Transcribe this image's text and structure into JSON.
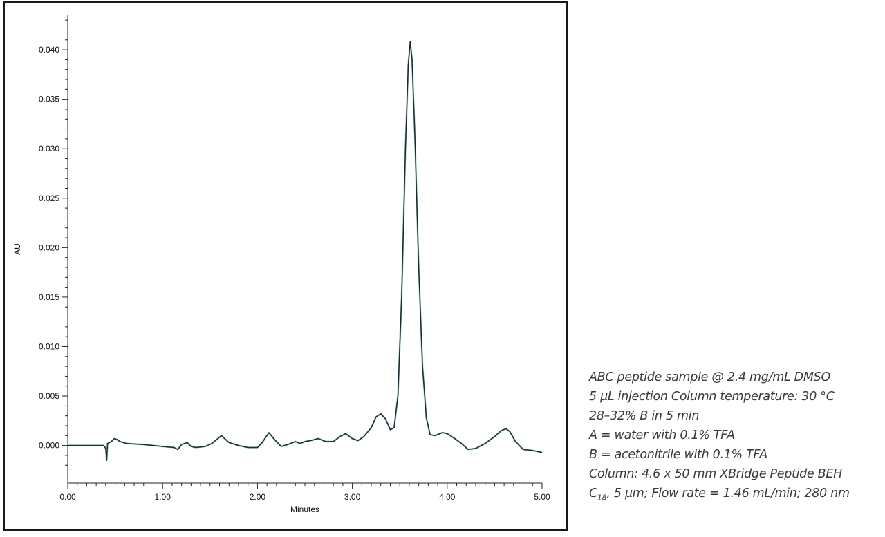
{
  "chart_data": {
    "type": "line",
    "xlabel": "Minutes",
    "ylabel": "AU",
    "xlim": [
      0.0,
      5.0
    ],
    "ylim": [
      -0.0038,
      0.0435
    ],
    "x_ticks": [
      "0.00",
      "1.00",
      "2.00",
      "3.00",
      "4.00",
      "5.00"
    ],
    "y_ticks": [
      "0.000",
      "0.005",
      "0.010",
      "0.015",
      "0.020",
      "0.025",
      "0.030",
      "0.035",
      "0.040"
    ],
    "grid": false,
    "series": [
      {
        "color": "#1c2a33",
        "points": [
          [
            0.0,
            0.0
          ],
          [
            0.38,
            0.0
          ],
          [
            0.4,
            -0.0003
          ],
          [
            0.41,
            -0.0015
          ],
          [
            0.42,
            0.0002
          ],
          [
            0.46,
            0.0004
          ],
          [
            0.49,
            0.0007
          ],
          [
            0.52,
            0.0006
          ],
          [
            0.55,
            0.0004
          ],
          [
            0.62,
            0.0002
          ],
          [
            0.8,
            0.0001
          ],
          [
            1.0,
            -0.0001
          ],
          [
            1.12,
            -0.0002
          ],
          [
            1.16,
            -0.0004
          ],
          [
            1.2,
            0.0001
          ],
          [
            1.26,
            0.0003
          ],
          [
            1.3,
            -0.0001
          ],
          [
            1.35,
            -0.0002
          ],
          [
            1.45,
            -0.0001
          ],
          [
            1.52,
            0.0002
          ],
          [
            1.62,
            0.001
          ],
          [
            1.7,
            0.0003
          ],
          [
            1.8,
            0.0
          ],
          [
            1.9,
            -0.0002
          ],
          [
            2.0,
            -0.0002
          ],
          [
            2.05,
            0.0003
          ],
          [
            2.12,
            0.0013
          ],
          [
            2.18,
            0.0006
          ],
          [
            2.25,
            -0.0001
          ],
          [
            2.32,
            0.0001
          ],
          [
            2.4,
            0.0004
          ],
          [
            2.45,
            0.0002
          ],
          [
            2.5,
            0.0004
          ],
          [
            2.56,
            0.0005
          ],
          [
            2.64,
            0.0007
          ],
          [
            2.72,
            0.0004
          ],
          [
            2.8,
            0.0004
          ],
          [
            2.87,
            0.0009
          ],
          [
            2.93,
            0.0012
          ],
          [
            3.0,
            0.0007
          ],
          [
            3.06,
            0.0005
          ],
          [
            3.12,
            0.0009
          ],
          [
            3.2,
            0.0018
          ],
          [
            3.25,
            0.0029
          ],
          [
            3.3,
            0.0032
          ],
          [
            3.35,
            0.0027
          ],
          [
            3.4,
            0.0016
          ],
          [
            3.44,
            0.0018
          ],
          [
            3.48,
            0.005
          ],
          [
            3.52,
            0.015
          ],
          [
            3.56,
            0.03
          ],
          [
            3.59,
            0.0385
          ],
          [
            3.61,
            0.0408
          ],
          [
            3.63,
            0.039
          ],
          [
            3.66,
            0.031
          ],
          [
            3.7,
            0.018
          ],
          [
            3.74,
            0.008
          ],
          [
            3.78,
            0.0028
          ],
          [
            3.82,
            0.0011
          ],
          [
            3.87,
            0.001
          ],
          [
            3.95,
            0.0013
          ],
          [
            4.0,
            0.0012
          ],
          [
            4.08,
            0.0007
          ],
          [
            4.15,
            0.0002
          ],
          [
            4.22,
            -0.0004
          ],
          [
            4.3,
            -0.0003
          ],
          [
            4.4,
            0.0002
          ],
          [
            4.5,
            0.0009
          ],
          [
            4.57,
            0.0015
          ],
          [
            4.62,
            0.0017
          ],
          [
            4.66,
            0.0014
          ],
          [
            4.72,
            0.0004
          ],
          [
            4.8,
            -0.0004
          ],
          [
            4.9,
            -0.0005
          ],
          [
            5.0,
            -0.0007
          ]
        ]
      }
    ]
  },
  "notes": {
    "line1": "ABC peptide sample @ 2.4 mg/mL DMSO",
    "line2": "5 µL injection Column temperature: 30 °C",
    "line3": "28–32% B in 5 min",
    "line4": "A = water with 0.1% TFA",
    "line5": "B = acetonitrile with 0.1% TFA",
    "line6": "Column: 4.6 x 50 mm XBridge Peptide BEH",
    "line7_c": "C",
    "line7_sub": "18",
    "line7_rest": ", 5 µm; Flow rate = 1.46 mL/min; 280 nm"
  }
}
